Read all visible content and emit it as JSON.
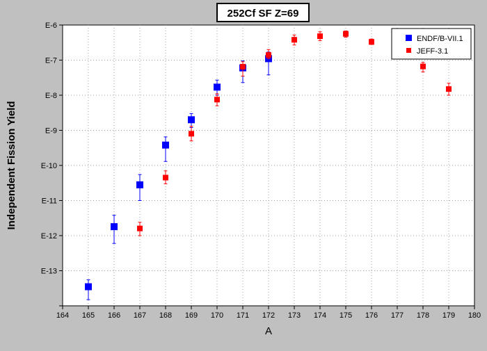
{
  "chart_data": {
    "type": "scatter",
    "title": "252Cf SF Z=69",
    "xlabel": "A",
    "ylabel": "Independent Fission Yield",
    "xlim": [
      164,
      180
    ],
    "ylim_exponent": [
      -14,
      -6
    ],
    "y_scale": "log",
    "x_ticks": [
      "164",
      "165",
      "166",
      "167",
      "168",
      "169",
      "170",
      "171",
      "172",
      "173",
      "174",
      "175",
      "176",
      "177",
      "178",
      "179",
      "180"
    ],
    "y_ticks": [
      "E-13",
      "E-12",
      "E-11",
      "E-10",
      "E-9",
      "E-8",
      "E-7",
      "E-6"
    ],
    "grid": true,
    "legend_position": "top-right",
    "series": [
      {
        "name": "ENDF/B-VII.1",
        "color": "#0000ff",
        "marker": "square",
        "points": [
          {
            "x": 165,
            "y": 3.5e-14,
            "y_low": 1.5e-14,
            "y_high": 5.5e-14
          },
          {
            "x": 166,
            "y": 1.8e-12,
            "y_low": 6e-13,
            "y_high": 3.8e-12
          },
          {
            "x": 167,
            "y": 2.8e-11,
            "y_low": 1e-11,
            "y_high": 5.5e-11
          },
          {
            "x": 168,
            "y": 3.8e-10,
            "y_low": 1.3e-10,
            "y_high": 6.5e-10
          },
          {
            "x": 169,
            "y": 2e-09,
            "y_low": 1.2e-09,
            "y_high": 3e-09
          },
          {
            "x": 170,
            "y": 1.7e-08,
            "y_low": 1e-08,
            "y_high": 2.7e-08
          },
          {
            "x": 171,
            "y": 6e-08,
            "y_low": 2.3e-08,
            "y_high": 9.5e-08
          },
          {
            "x": 172,
            "y": 1.1e-07,
            "y_low": 3.8e-08,
            "y_high": 1.7e-07
          }
        ]
      },
      {
        "name": "JEFF-3.1",
        "color": "#ff0000",
        "marker": "square",
        "points": [
          {
            "x": 167,
            "y": 1.6e-12,
            "y_low": 1e-12,
            "y_high": 2.4e-12
          },
          {
            "x": 168,
            "y": 4.5e-11,
            "y_low": 3e-11,
            "y_high": 7e-11
          },
          {
            "x": 169,
            "y": 8e-10,
            "y_low": 5e-10,
            "y_high": 1.3e-09
          },
          {
            "x": 170,
            "y": 7.5e-09,
            "y_low": 5e-09,
            "y_high": 1.1e-08
          },
          {
            "x": 171,
            "y": 6.5e-08,
            "y_low": 3.5e-08,
            "y_high": 9e-08
          },
          {
            "x": 172,
            "y": 1.4e-07,
            "y_low": 1.1e-07,
            "y_high": 2e-07
          },
          {
            "x": 173,
            "y": 3.8e-07,
            "y_low": 2.7e-07,
            "y_high": 5.2e-07
          },
          {
            "x": 174,
            "y": 4.8e-07,
            "y_low": 3.6e-07,
            "y_high": 6.4e-07
          },
          {
            "x": 175,
            "y": 5.6e-07,
            "y_low": 4.5e-07,
            "y_high": 6.8e-07
          },
          {
            "x": 176,
            "y": 3.3e-07,
            "y_low": 2.8e-07,
            "y_high": 4e-07
          },
          {
            "x": 178,
            "y": 6.6e-08,
            "y_low": 4.6e-08,
            "y_high": 8.6e-08
          },
          {
            "x": 179,
            "y": 1.5e-08,
            "y_low": 1e-08,
            "y_high": 2.2e-08
          }
        ]
      }
    ]
  }
}
